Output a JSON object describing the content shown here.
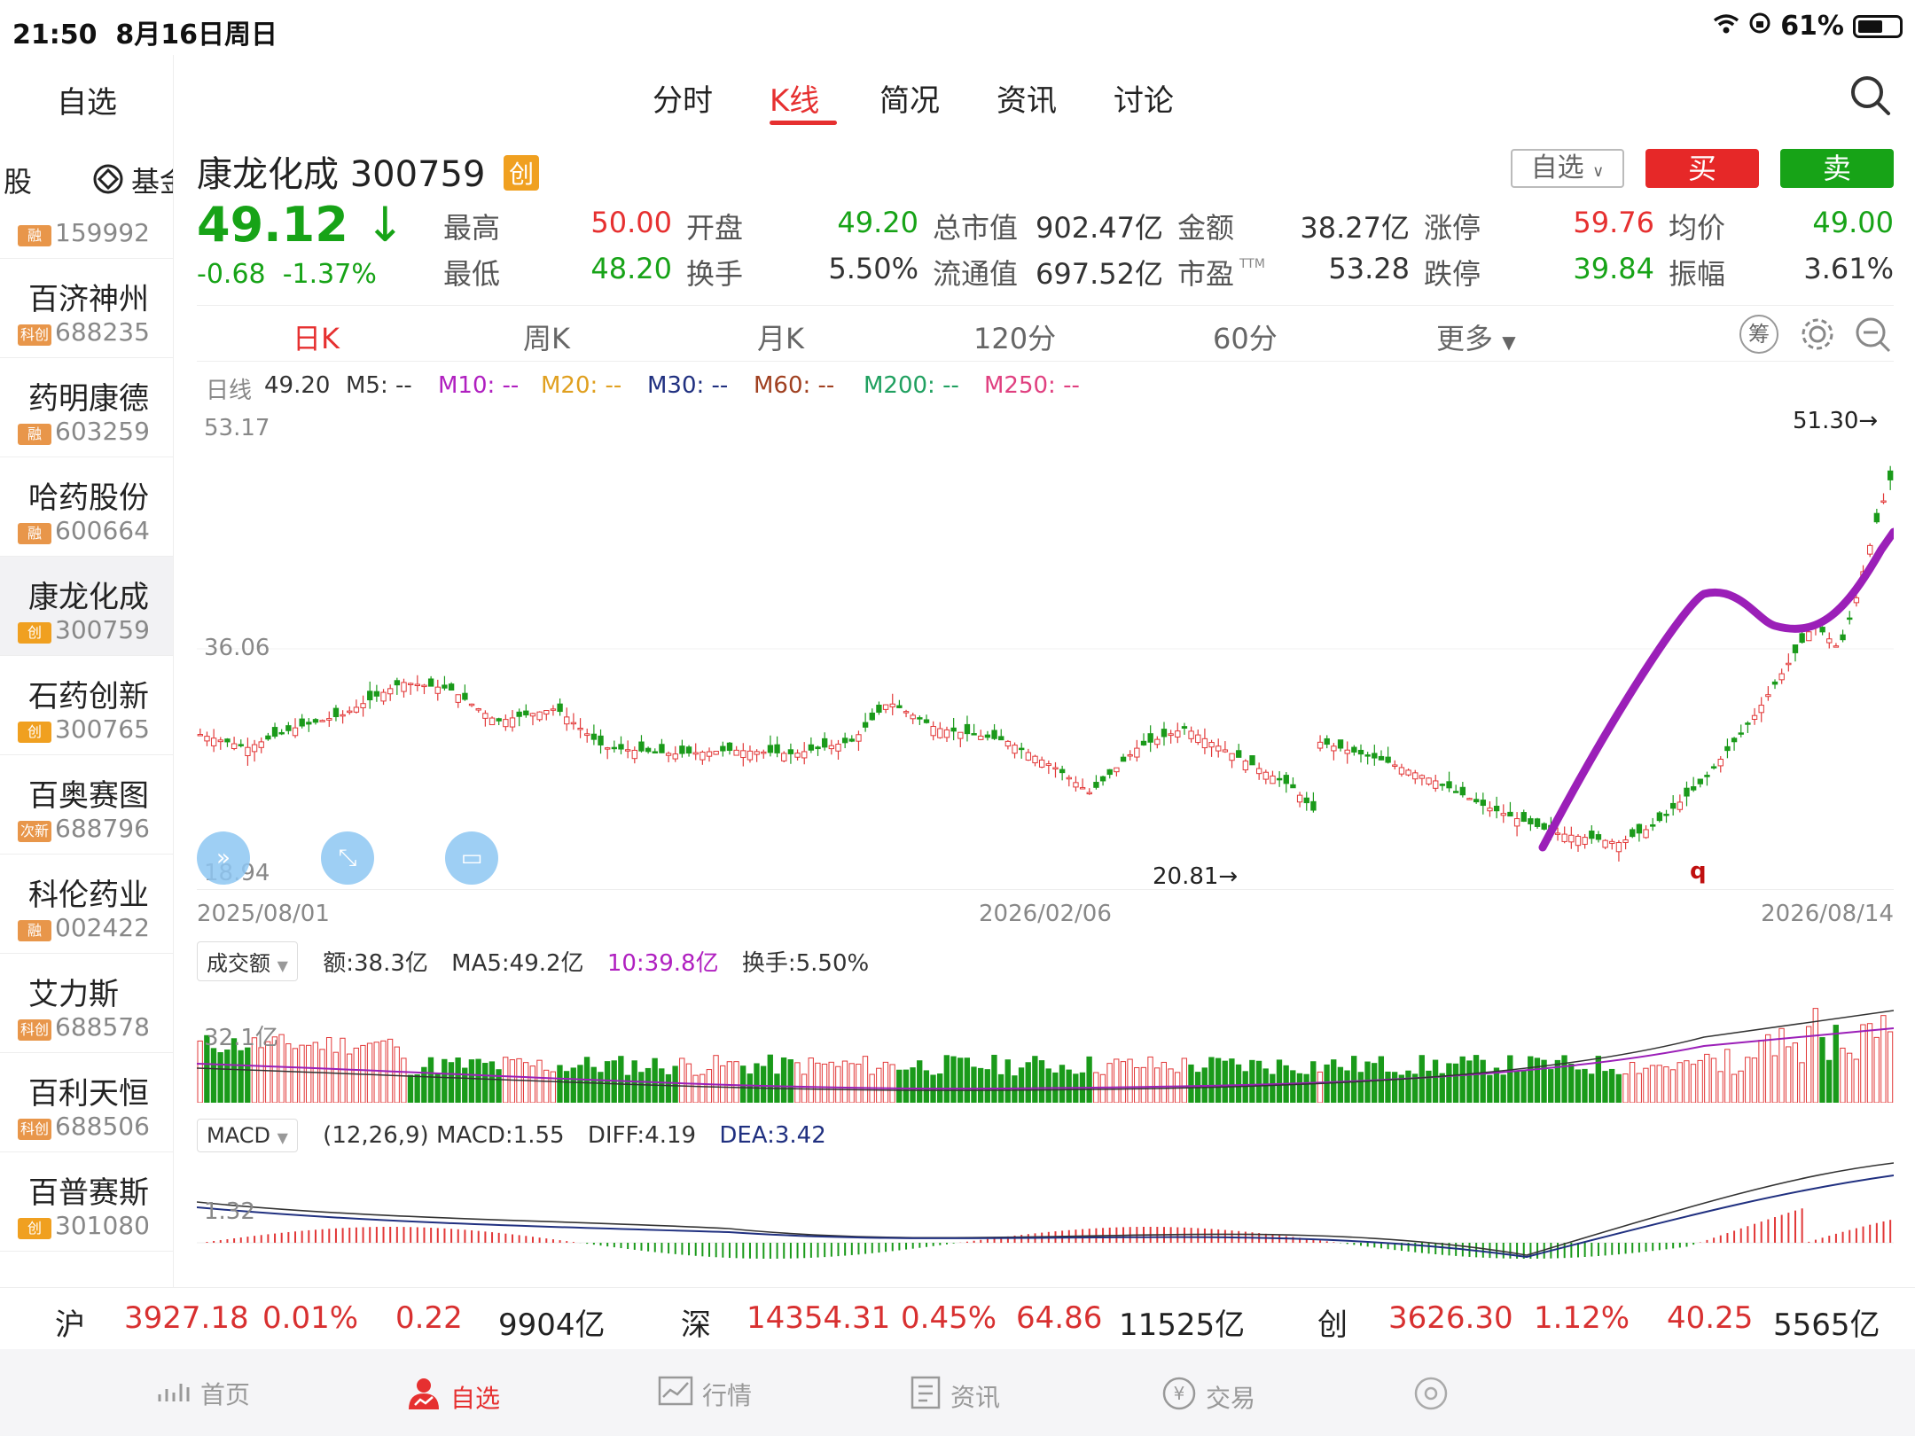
{
  "status_bar": {
    "time": "21:50",
    "date": "8月16日周日",
    "battery": "61%",
    "battery_level": 0.61
  },
  "sidebar": {
    "title": "自选",
    "tabs": [
      "股",
      "基金"
    ],
    "items": [
      {
        "name": "",
        "badge": "融",
        "badge_color": "#e8964a",
        "code": "159992"
      },
      {
        "name": "百济神州",
        "badge": "科创",
        "badge_color": "#e8964a",
        "code": "688235"
      },
      {
        "name": "药明康德",
        "badge": "融",
        "badge_color": "#e8964a",
        "code": "603259"
      },
      {
        "name": "哈药股份",
        "badge": "融",
        "badge_color": "#e8964a",
        "code": "600664"
      },
      {
        "name": "康龙化成",
        "badge": "创",
        "badge_color": "#f0a020",
        "code": "300759"
      },
      {
        "name": "石药创新",
        "badge": "创",
        "badge_color": "#f0a020",
        "code": "300765"
      },
      {
        "name": "百奥赛图",
        "badge": "次新",
        "badge_color": "#e8964a",
        "code": "688796"
      },
      {
        "name": "科伦药业",
        "badge": "融",
        "badge_color": "#e8964a",
        "code": "002422"
      },
      {
        "name": "艾力斯",
        "badge": "科创",
        "badge_color": "#e8964a",
        "code": "688578"
      },
      {
        "name": "百利天恒",
        "badge": "科创",
        "badge_color": "#e8964a",
        "code": "688506"
      },
      {
        "name": "百普赛斯",
        "badge": "创",
        "badge_color": "#f0a020",
        "code": "301080"
      }
    ]
  },
  "topnav": {
    "tabs": [
      "分时",
      "K线",
      "简况",
      "资讯",
      "讨论"
    ],
    "active": 1
  },
  "stock": {
    "name": "康龙化成",
    "code": "300759",
    "board_badge": "创",
    "price": "49.12",
    "arrow": "↓",
    "change": "-0.68",
    "change_pct": "-1.37%",
    "fields": [
      {
        "label": "最高",
        "value": "50.00",
        "color": "red"
      },
      {
        "label": "开盘",
        "value": "49.20",
        "color": "green"
      },
      {
        "label": "总市值",
        "value": "902.47亿",
        "color": "dark"
      },
      {
        "label": "金额",
        "value": "38.27亿",
        "color": "dark"
      },
      {
        "label": "涨停",
        "value": "59.76",
        "color": "red"
      },
      {
        "label": "均价",
        "value": "49.00",
        "color": "green"
      },
      {
        "label": "最低",
        "value": "48.20",
        "color": "green"
      },
      {
        "label": "换手",
        "value": "5.50%",
        "color": "dark"
      },
      {
        "label": "流通值",
        "value": "697.52亿",
        "color": "dark"
      },
      {
        "label": "市盈",
        "value": "53.28",
        "color": "dark"
      },
      {
        "label": "跌停",
        "value": "39.84",
        "color": "green"
      },
      {
        "label": "振幅",
        "value": "3.61%",
        "color": "dark"
      }
    ],
    "ttm_mark": "TTM"
  },
  "actions": {
    "watch": "自选",
    "buy": "买",
    "sell": "卖"
  },
  "periods": {
    "items": [
      "日K",
      "周K",
      "月K",
      "120分",
      "60分",
      "更多"
    ],
    "active": 0,
    "chip_label": "筹"
  },
  "ma_row": {
    "prefix": "日线",
    "value": "49.20",
    "items": [
      {
        "label": "M5: --",
        "color": "#333333"
      },
      {
        "label": "M10: --",
        "color": "#b020c0"
      },
      {
        "label": "M20: --",
        "color": "#e0a020"
      },
      {
        "label": "M30: --",
        "color": "#203080"
      },
      {
        "label": "M60: --",
        "color": "#a04020"
      },
      {
        "label": "M200: --",
        "color": "#20a060"
      },
      {
        "label": "M250: --",
        "color": "#e04080"
      }
    ]
  },
  "kchart": {
    "y_top": "53.17",
    "y_mid": "36.06",
    "y_bottom": "18.94",
    "high_marker": "51.30→",
    "low_marker": "20.81→",
    "scribble": "q",
    "dates": [
      "2025/08/01",
      "2026/02/06",
      "2026/08/14"
    ]
  },
  "volume": {
    "selector": "成交额",
    "amount": "额:38.3亿",
    "ma5": "MA5:49.2亿",
    "ma10": "10:39.8亿",
    "turnover": "换手:5.50%",
    "y_label": "32.1亿"
  },
  "macd": {
    "selector": "MACD",
    "params": "(12,26,9) MACD:1.55",
    "diff": "DIFF:4.19",
    "dea": "DEA:3.42",
    "y_label": "1.32"
  },
  "index_bar": [
    {
      "name": "沪",
      "value": "3927.18",
      "pct": "0.01%",
      "chg": "0.22",
      "amount": "9904亿"
    },
    {
      "name": "深",
      "value": "14354.31",
      "pct": "0.45%",
      "chg": "64.86",
      "amount": "11525亿"
    },
    {
      "name": "创",
      "value": "3626.30",
      "pct": "1.12%",
      "chg": "40.25",
      "amount": "5565亿"
    }
  ],
  "bottom_nav": {
    "items": [
      "首页",
      "自选",
      "行情",
      "资讯",
      "交易"
    ],
    "active": 1
  }
}
